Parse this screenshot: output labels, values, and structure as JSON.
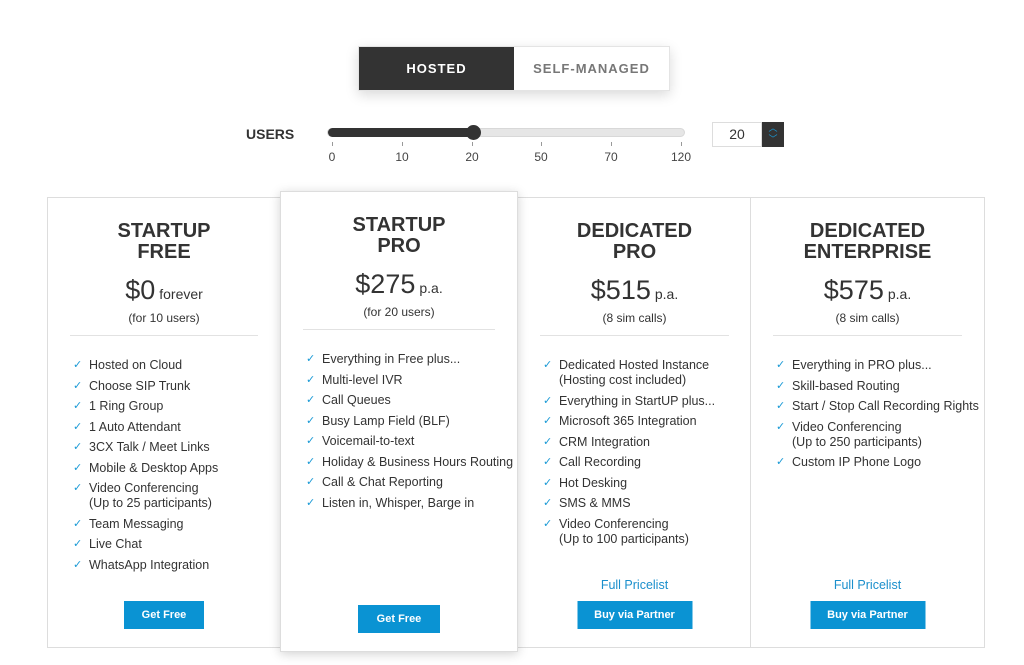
{
  "toggle": {
    "options": [
      "HOSTED",
      "SELF-MANAGED"
    ],
    "selected": "HOSTED"
  },
  "users": {
    "label": "USERS",
    "value": "20",
    "ticks": [
      "0",
      "10",
      "20",
      "50",
      "70",
      "120"
    ],
    "selected_tick_index": 2
  },
  "plans": [
    {
      "title1": "STARTUP",
      "title2": "FREE",
      "price": "$0",
      "period": "forever",
      "sub": "(for 10 users)",
      "features": [
        "Hosted on Cloud",
        "Choose SIP Trunk",
        "1 Ring Group",
        "1 Auto Attendant",
        "3CX Talk / Meet Links",
        "Mobile & Desktop Apps",
        "Video Conferencing\n(Up to 25 participants)",
        "Team Messaging",
        "Live Chat",
        "WhatsApp Integration"
      ],
      "button": "Get Free"
    },
    {
      "title1": "STARTUP",
      "title2": "PRO",
      "price": "$275",
      "period": "p.a.",
      "sub": "(for 20 users)",
      "features": [
        "Everything in Free plus...",
        "Multi-level IVR",
        "Call Queues",
        "Busy Lamp Field (BLF)",
        "Voicemail-to-text",
        "Holiday & Business Hours Routing",
        "Call & Chat Reporting",
        "Listen in, Whisper, Barge in"
      ],
      "button": "Get Free"
    },
    {
      "title1": "DEDICATED",
      "title2": "PRO",
      "price": "$515",
      "period": "p.a.",
      "sub": "(8 sim calls)",
      "features": [
        "Dedicated Hosted Instance\n(Hosting cost included)",
        "Everything in StartUP plus...",
        "Microsoft 365 Integration",
        "CRM Integration",
        "Call Recording",
        "Hot Desking",
        "SMS & MMS",
        "Video Conferencing\n(Up to 100 participants)"
      ],
      "link": "Full Pricelist",
      "button": "Buy via Partner"
    },
    {
      "title1": "DEDICATED",
      "title2": "ENTERPRISE",
      "price": "$575",
      "period": "p.a.",
      "sub": "(8 sim calls)",
      "features": [
        "Everything in PRO plus...",
        "Skill-based Routing",
        "Start / Stop Call Recording Rights",
        "Video Conferencing\n(Up to 250 participants)",
        "Custom IP Phone Logo"
      ],
      "link": "Full Pricelist",
      "button": "Buy via Partner"
    }
  ],
  "colors": {
    "accent": "#0a93d3",
    "dark": "#333333"
  }
}
